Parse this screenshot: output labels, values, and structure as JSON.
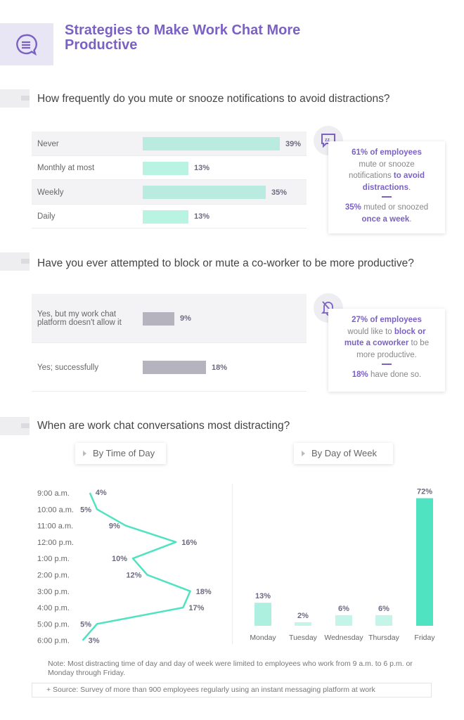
{
  "header": {
    "title": "Strategies to Make Work Chat More Productive",
    "icon": "chat-bubble-icon"
  },
  "section1": {
    "question": "How frequently do you mute or snooze notifications to avoid distractions?",
    "rows": [
      {
        "label": "Never",
        "value": 39,
        "pct": "39%"
      },
      {
        "label": "Monthly at most",
        "value": 13,
        "pct": "13%"
      },
      {
        "label": "Weekly",
        "value": 35,
        "pct": "35%"
      },
      {
        "label": "Daily",
        "value": 13,
        "pct": "13%"
      }
    ],
    "callout": {
      "icon": "snooze-zz-icon",
      "l1": "61% of employees",
      "l2": "mute or snooze notifications",
      "l3": "to avoid distractions",
      "l4": ".",
      "l5": "35%",
      "l6": " muted or snoozed",
      "l7": "once a week",
      "l8": "."
    }
  },
  "section2": {
    "question": "Have you ever attempted to block or mute a co-worker to be more productive?",
    "rows": [
      {
        "label": "Yes, but my work chat platform doesn't allow it",
        "value": 9,
        "pct": "9%"
      },
      {
        "label": "Yes; successfully",
        "value": 18,
        "pct": "18%"
      }
    ],
    "callout": {
      "icon": "bell-off-icon",
      "l1": "27% of employees",
      "l2": "would like to ",
      "l3": "block or mute a coworker",
      "l4": " to be more productive.",
      "l5": "18%",
      "l6": " have done so."
    }
  },
  "section3": {
    "question": "When are work chat conversations most distracting?",
    "tab_time": "By Time of Day",
    "tab_day": "By Day of Week"
  },
  "colors": {
    "accent": "#7b61c4",
    "teal": "#4fe3c1",
    "teal_light": "#b9f1e2",
    "gray_bar": "#b4b3be"
  },
  "chart_data": [
    {
      "type": "line",
      "title": "By Time of Day",
      "orientation": "vertical-category",
      "categories": [
        "9:00 a.m.",
        "10:00 a.m.",
        "11:00 a.m.",
        "12:00 p.m.",
        "1:00 p.m.",
        "2:00 p.m.",
        "3:00 p.m.",
        "4:00 p.m.",
        "5:00 p.m.",
        "6:00 p.m."
      ],
      "values": [
        4,
        5,
        9,
        16,
        10,
        12,
        18,
        17,
        5,
        3
      ],
      "labels": [
        "4%",
        "5%",
        "9%",
        "16%",
        "10%",
        "12%",
        "18%",
        "17%",
        "5%",
        "3%"
      ]
    },
    {
      "type": "bar",
      "title": "By Day of Week",
      "categories": [
        "Monday",
        "Tuesday",
        "Wednesday",
        "Thursday",
        "Friday"
      ],
      "values": [
        13,
        2,
        6,
        6,
        72
      ],
      "labels": [
        "13%",
        "2%",
        "6%",
        "6%",
        "72%"
      ]
    }
  ],
  "footer": {
    "note": "Note: Most distracting time of day and day of week were limited to employees who work from 9 a.m. to 6 p.m. or Monday through Friday.",
    "source": "+ Source: Survey of more than 900 employees regularly using an instant messaging platform at work"
  }
}
